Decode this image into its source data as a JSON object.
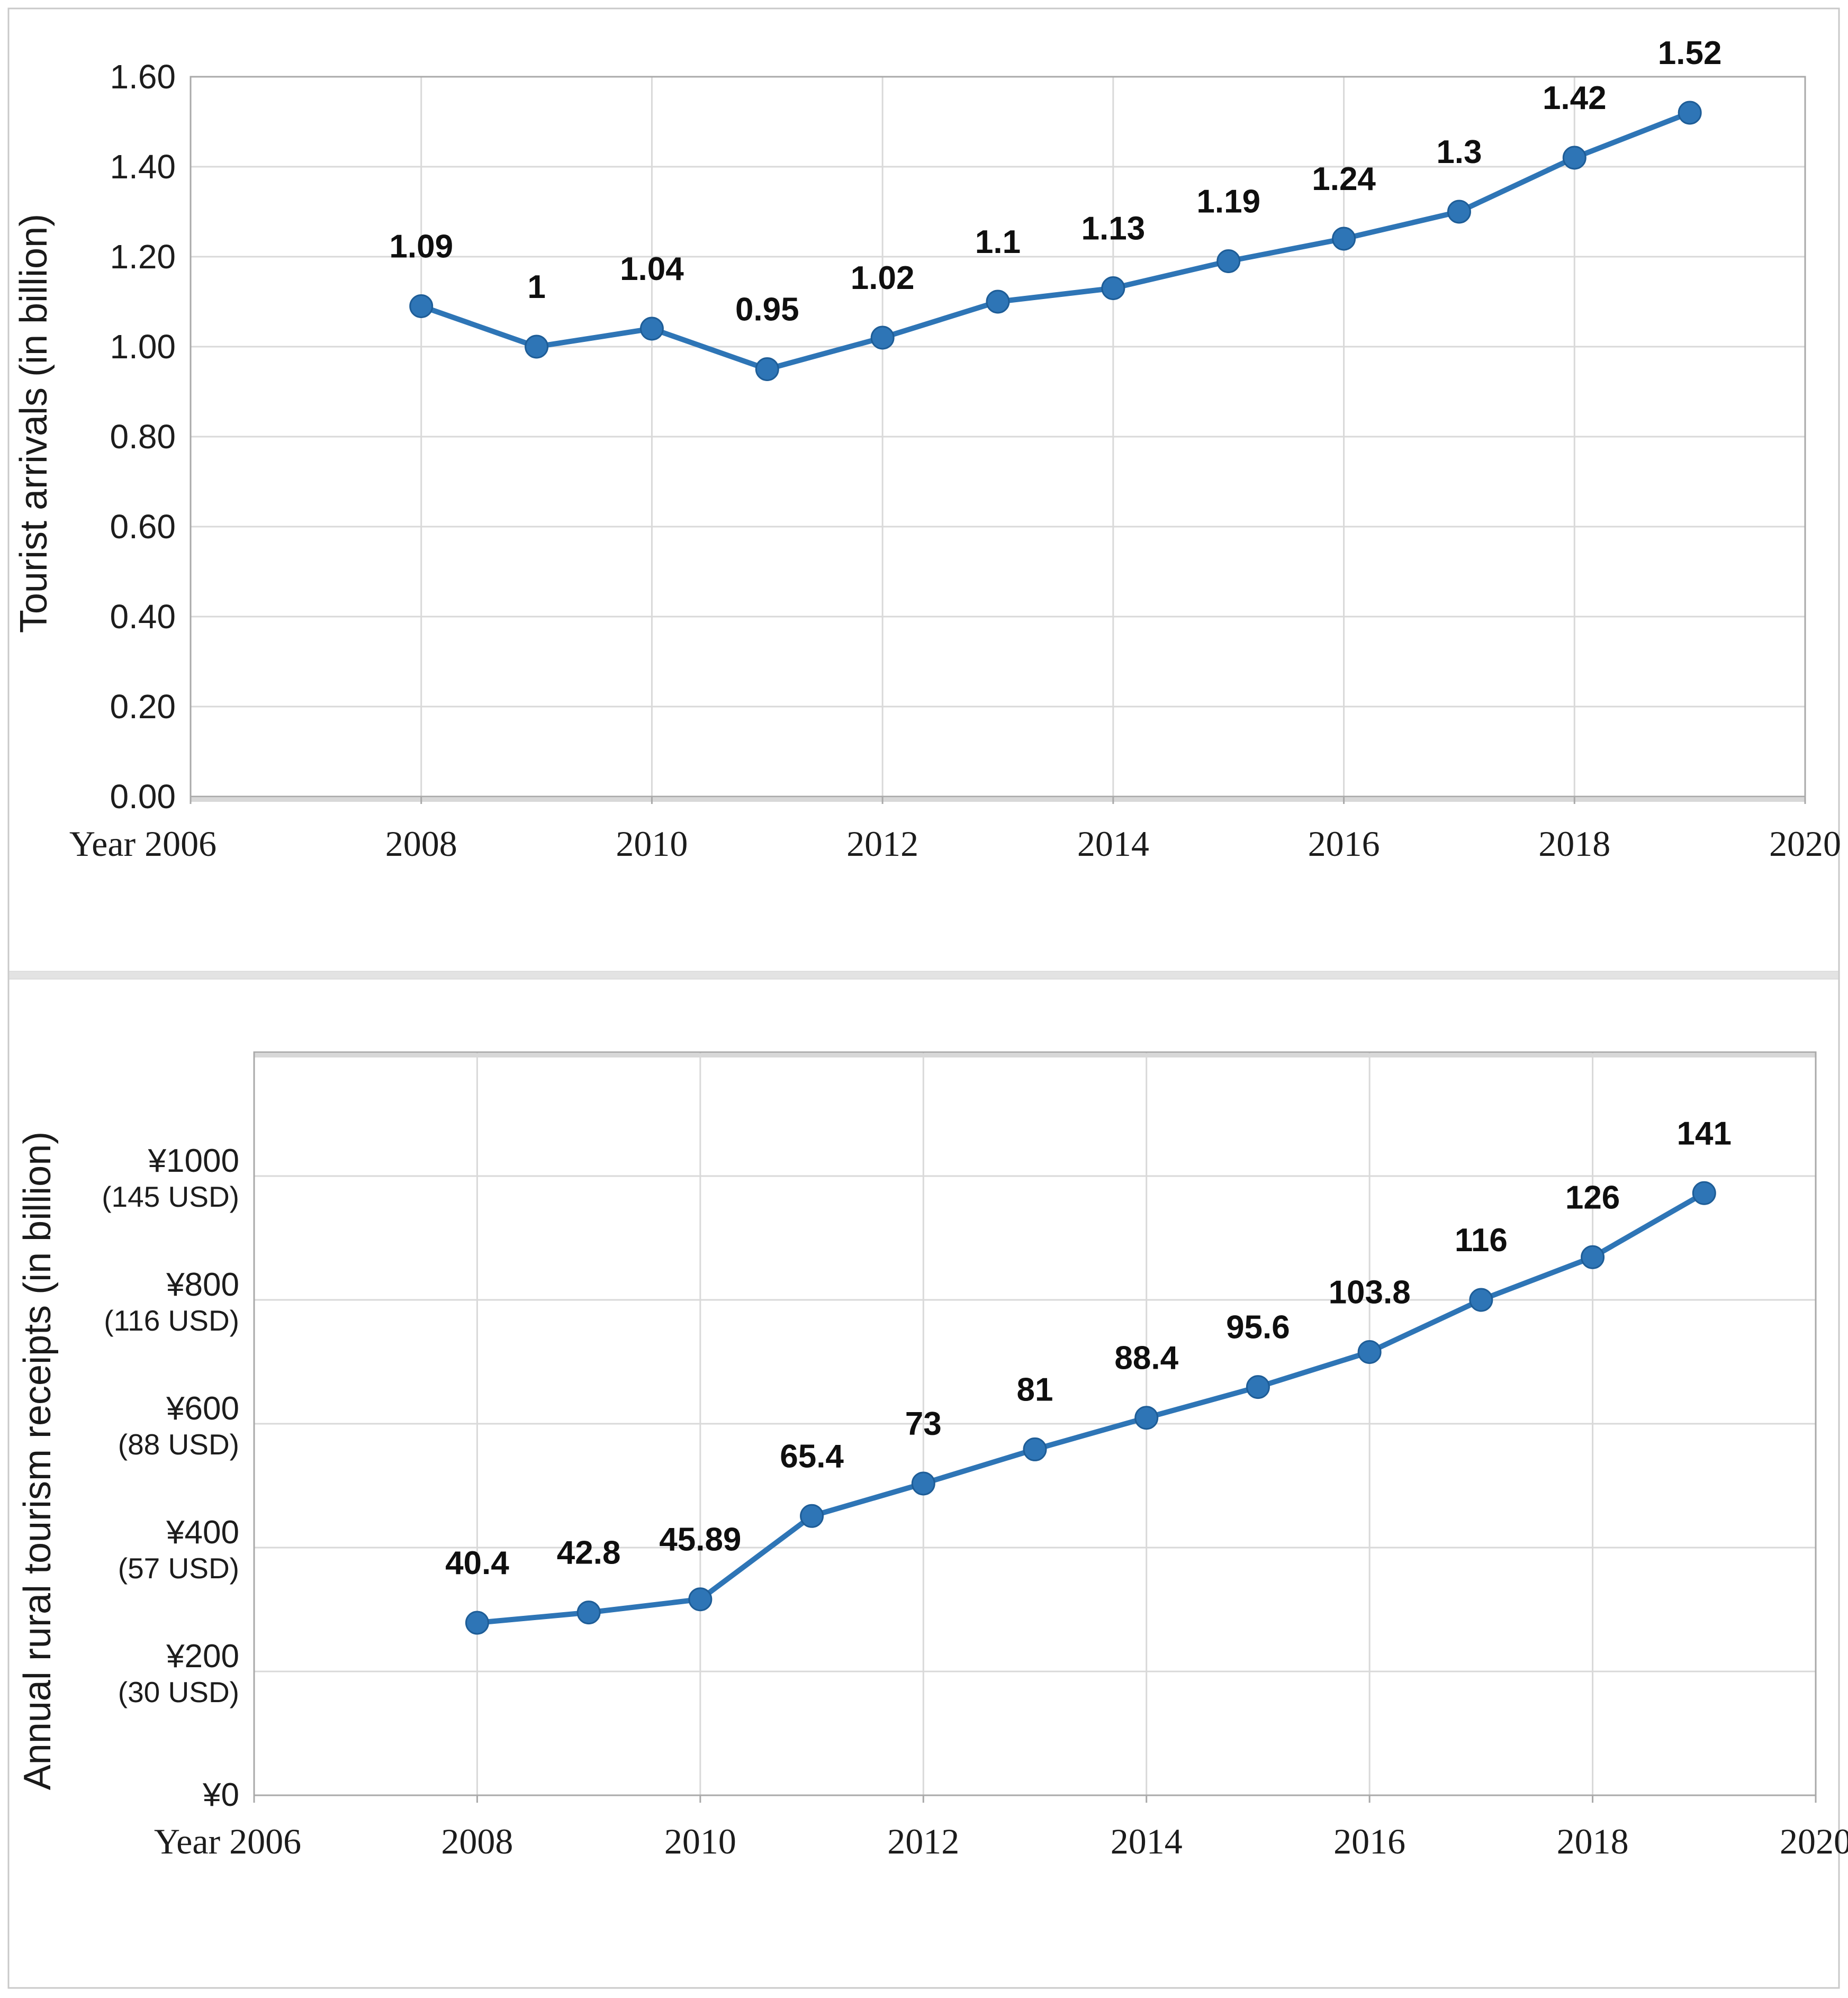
{
  "figure": {
    "background": "#ffffff",
    "frame_color": "#c9c9c9",
    "accent_color": "#2E75B6",
    "gridline_color": "#d9d9d9"
  },
  "chart_data": [
    {
      "id": "tourist-arrivals",
      "type": "line",
      "title": "",
      "ylabel": "Tourist arrivals (in billion)",
      "xlabel": "Year",
      "x": [
        2008,
        2009,
        2010,
        2011,
        2012,
        2013,
        2014,
        2015,
        2016,
        2017,
        2018,
        2019
      ],
      "values": [
        1.09,
        1,
        1.04,
        0.95,
        1.02,
        1.1,
        1.13,
        1.19,
        1.24,
        1.3,
        1.42,
        1.52
      ],
      "point_labels": [
        "1.09",
        "1",
        "1.04",
        "0.95",
        "1.02",
        "1.1",
        "1.13",
        "1.19",
        "1.24",
        "1.3",
        "1.42",
        "1.52"
      ],
      "x_tick_years": [
        2006,
        2008,
        2010,
        2012,
        2014,
        2016,
        2018,
        2020
      ],
      "x_tick_labels": [
        "Year 2006",
        "2008",
        "2010",
        "2012",
        "2014",
        "2016",
        "2018",
        "2020"
      ],
      "y_tick_values": [
        1.6,
        1.4,
        1.2,
        1.0,
        0.8,
        0.6,
        0.4,
        0.2,
        0
      ],
      "y_tick_labels": [
        "1.60",
        "1.40",
        "1.20",
        "1.00",
        "0.80",
        "0.60",
        "0.40",
        "0.20",
        "0.00"
      ],
      "xlim": [
        2006,
        2020
      ],
      "ylim": [
        0,
        1.6
      ],
      "grid": true,
      "legend_position": "none",
      "line_color": "#2E75B6",
      "marker": "circle"
    },
    {
      "id": "rural-tourism-receipts",
      "type": "line",
      "title": "",
      "ylabel": "Annual rural tourism receipts (in billion)",
      "xlabel": "Year",
      "x": [
        2008,
        2009,
        2010,
        2011,
        2012,
        2013,
        2014,
        2015,
        2016,
        2017,
        2018,
        2019
      ],
      "values": [
        40.4,
        42.8,
        45.89,
        65.4,
        73,
        81,
        88.4,
        95.6,
        103.8,
        116,
        126,
        141
      ],
      "point_labels": [
        "40.4",
        "42.8",
        "45.89",
        "65.4",
        "73",
        "81",
        "88.4",
        "95.6",
        "103.8",
        "116",
        "126",
        "141"
      ],
      "x_tick_years": [
        2006,
        2008,
        2010,
        2012,
        2014,
        2016,
        2018,
        2020
      ],
      "x_tick_labels": [
        "Year 2006",
        "2008",
        "2010",
        "2012",
        "2014",
        "2016",
        "2018",
        "2020"
      ],
      "y_ticks": [
        {
          "yen": "¥1000",
          "usd": "(145 USD)",
          "value": 1000
        },
        {
          "yen": "¥800",
          "usd": "(116 USD)",
          "value": 800
        },
        {
          "yen": "¥600",
          "usd": "(88 USD)",
          "value": 600
        },
        {
          "yen": "¥400",
          "usd": "(57 USD)",
          "value": 400
        },
        {
          "yen": "¥200",
          "usd": "(30 USD)",
          "value": 200
        },
        {
          "yen": "¥0",
          "usd": "",
          "value": 0
        }
      ],
      "yen_ylim": [
        0,
        1200
      ],
      "yen_per_1000_equals_usd": 145,
      "xlim": [
        2006,
        2020
      ],
      "grid": true,
      "legend_position": "none",
      "line_color": "#2E75B6",
      "marker": "circle"
    }
  ]
}
